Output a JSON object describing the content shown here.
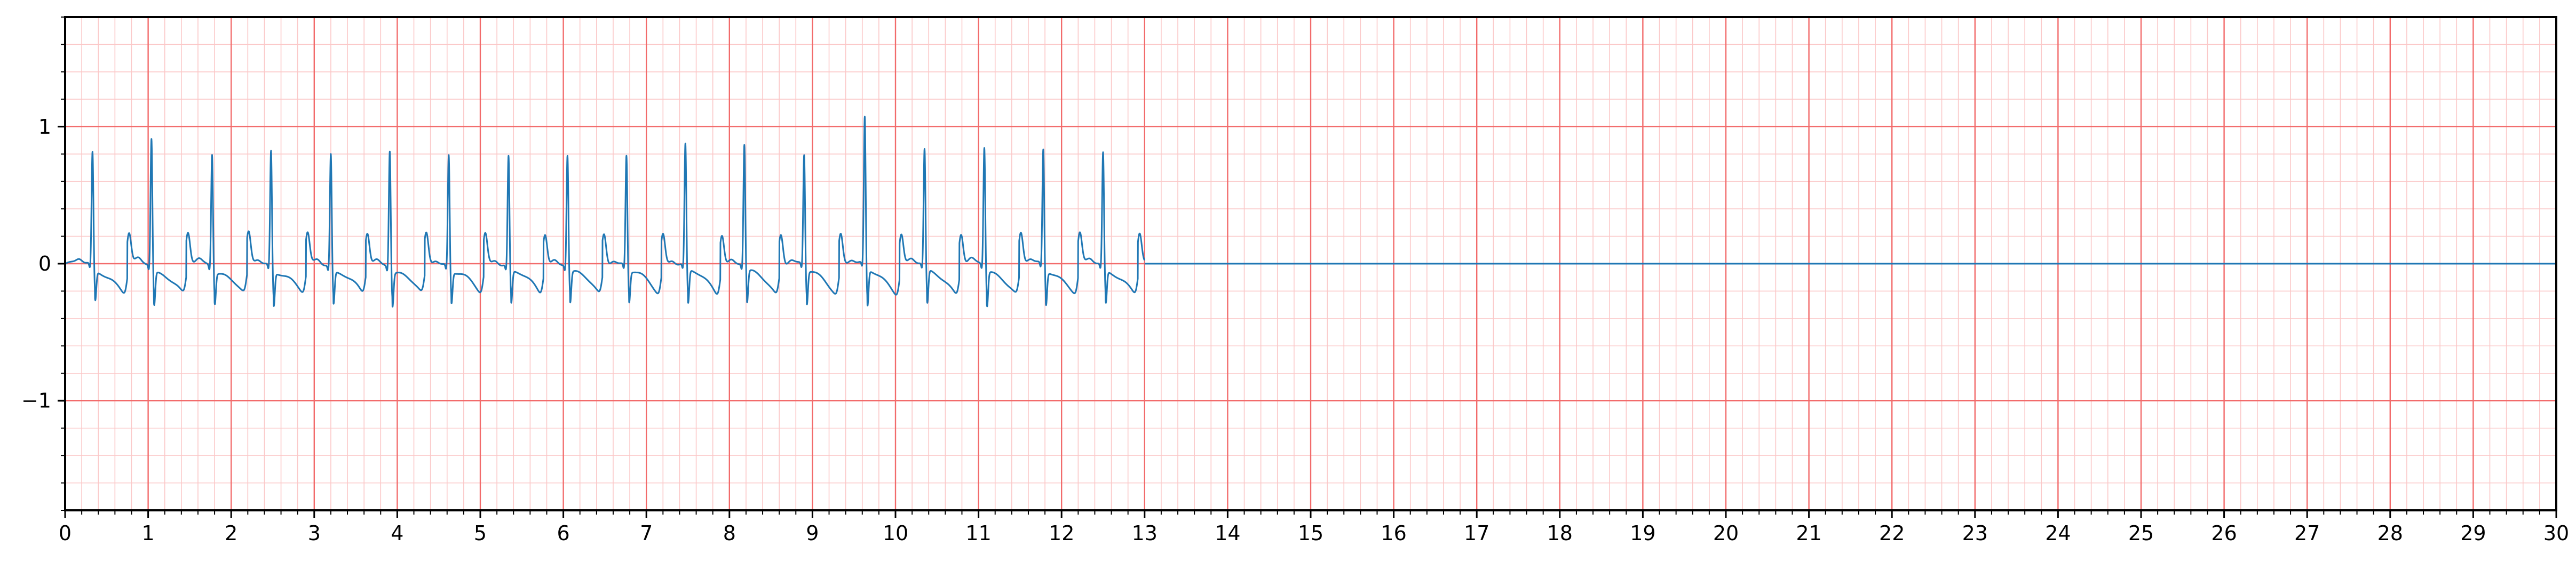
{
  "chart_data": {
    "type": "line",
    "title": "",
    "xlabel": "",
    "ylabel": "",
    "xlim": [
      0,
      30
    ],
    "ylim": [
      -1.8,
      1.8
    ],
    "x_major_step": 1,
    "x_minor_step": 0.2,
    "y_major_step": 1,
    "y_minor_step": 0.2,
    "grid": true,
    "x_tick_labels": [
      "0",
      "1",
      "2",
      "3",
      "4",
      "5",
      "6",
      "7",
      "8",
      "9",
      "10",
      "11",
      "12",
      "13",
      "14",
      "15",
      "16",
      "17",
      "18",
      "19",
      "20",
      "21",
      "22",
      "23",
      "24",
      "25",
      "26",
      "27",
      "28",
      "29",
      "30"
    ],
    "y_tick_values": [
      -1,
      0,
      1
    ],
    "y_tick_labels": [
      "−1",
      "0",
      "1"
    ],
    "colors": {
      "trace": "#1f77b4",
      "major_grid": "#f26b6b",
      "minor_grid": "#fbc8c8",
      "axes": "#000000"
    },
    "signal_end_time": 13.0,
    "baseline_after_end": 0.0,
    "series": [
      {
        "beats": [
          {
            "t": 0.33,
            "r": 0.82,
            "s": -0.22
          },
          {
            "t": 1.04,
            "r": 0.93,
            "s": -0.25
          },
          {
            "t": 1.77,
            "r": 0.82,
            "s": -0.23
          },
          {
            "t": 2.48,
            "r": 0.84,
            "s": -0.25
          },
          {
            "t": 3.2,
            "r": 0.82,
            "s": -0.24
          },
          {
            "t": 3.91,
            "r": 0.85,
            "s": -0.25
          },
          {
            "t": 4.62,
            "r": 0.81,
            "s": -0.23
          },
          {
            "t": 5.34,
            "r": 0.8,
            "s": -0.24
          },
          {
            "t": 6.05,
            "r": 0.81,
            "s": -0.23
          },
          {
            "t": 6.76,
            "r": 0.8,
            "s": -0.23
          },
          {
            "t": 7.47,
            "r": 0.88,
            "s": -0.25
          },
          {
            "t": 8.18,
            "r": 0.88,
            "s": -0.24
          },
          {
            "t": 8.9,
            "r": 0.8,
            "s": -0.25
          },
          {
            "t": 9.63,
            "r": 1.07,
            "s": -0.27
          },
          {
            "t": 10.35,
            "r": 0.84,
            "s": -0.25
          },
          {
            "t": 11.07,
            "r": 0.86,
            "s": -0.26
          },
          {
            "t": 11.78,
            "r": 0.84,
            "s": -0.25
          },
          {
            "t": 12.5,
            "r": 0.82,
            "s": -0.24
          }
        ]
      }
    ]
  }
}
